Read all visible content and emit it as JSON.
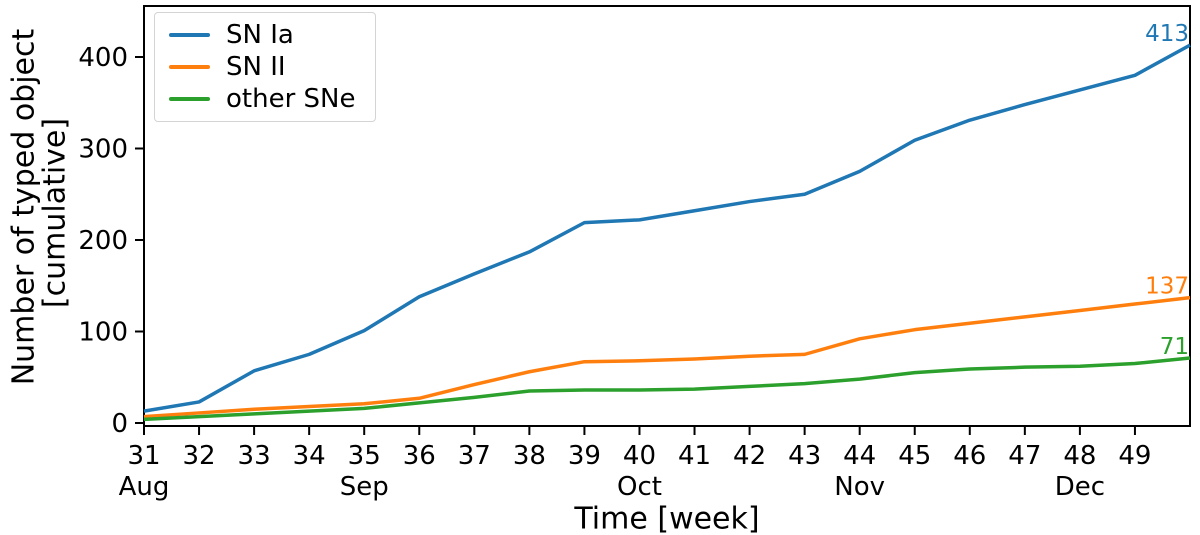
{
  "chart_data": {
    "type": "line",
    "title": "",
    "xlabel": "Time [week]",
    "ylabel": "Number of typed object [cumulative]",
    "ylabel_lines": [
      "Number of typed object",
      "[cumulative]"
    ],
    "x_weeks": [
      31,
      32,
      33,
      34,
      35,
      36,
      37,
      38,
      39,
      40,
      41,
      42,
      43,
      44,
      45,
      46,
      47,
      48,
      49,
      50
    ],
    "series": [
      {
        "name": "SN Ia",
        "color": "#1f77b4",
        "values": [
          13,
          23,
          57,
          75,
          101,
          138,
          163,
          187,
          219,
          222,
          232,
          242,
          250,
          275,
          309,
          331,
          348,
          364,
          380,
          413
        ],
        "end_label": "413"
      },
      {
        "name": "SN II",
        "color": "#ff7f0e",
        "values": [
          7,
          11,
          15,
          18,
          21,
          27,
          42,
          56,
          67,
          68,
          70,
          73,
          75,
          92,
          102,
          109,
          116,
          123,
          130,
          137
        ],
        "end_label": "137"
      },
      {
        "name": "other SNe",
        "color": "#2ca02c",
        "values": [
          4,
          7,
          10,
          13,
          16,
          22,
          28,
          35,
          36,
          36,
          37,
          40,
          43,
          48,
          55,
          59,
          61,
          62,
          65,
          71
        ],
        "end_label": "71"
      }
    ],
    "xticks": [
      31,
      32,
      33,
      34,
      35,
      36,
      37,
      38,
      39,
      40,
      41,
      42,
      43,
      44,
      45,
      46,
      47,
      48,
      49
    ],
    "month_ticks": [
      {
        "week": 31,
        "label": "Aug"
      },
      {
        "week": 35,
        "label": "Sep"
      },
      {
        "week": 40,
        "label": "Oct"
      },
      {
        "week": 44,
        "label": "Nov"
      },
      {
        "week": 48,
        "label": "Dec"
      }
    ],
    "yticks": [
      0,
      100,
      200,
      300,
      400
    ],
    "xlim": [
      31,
      50
    ],
    "ylim": [
      -4,
      455
    ],
    "grid": false,
    "legend_position": "upper left",
    "axis_color": "#000000"
  }
}
